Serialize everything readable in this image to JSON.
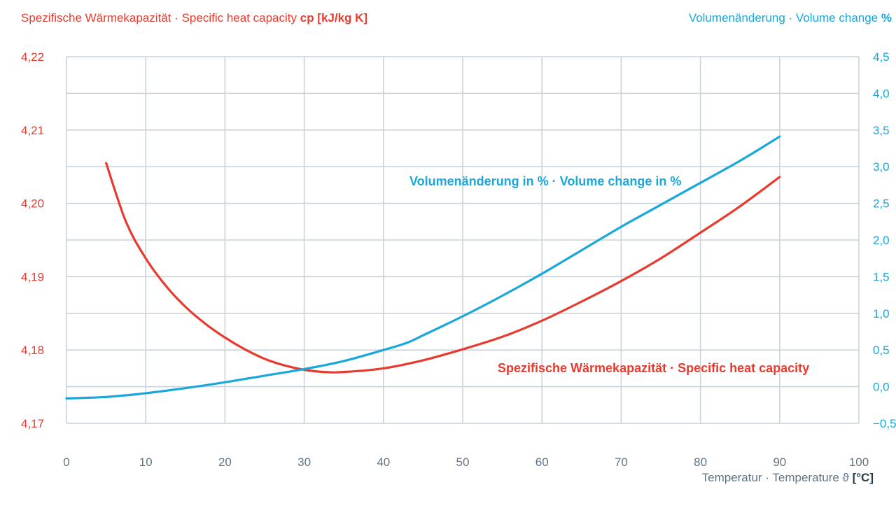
{
  "colors": {
    "heat": "#e63b2e",
    "volume": "#1aa7d9",
    "grid": "#c9d3da",
    "axis_text": "#5f7585"
  },
  "titles": {
    "left_text": "Spezifische Wärmekapazität · Specific heat capacity",
    "left_unit": "cp [kJ/kg K]",
    "right_text": "Volumenänderung · Volume change",
    "right_unit": "%",
    "x_text": "Temperatur · Temperature ϑ",
    "x_unit": "[°C]"
  },
  "chart_data": {
    "type": "line",
    "x": [
      0,
      10,
      20,
      30,
      40,
      50,
      60,
      70,
      80,
      90,
      100
    ],
    "xlabel": "Temperatur · Temperature ϑ [°C]",
    "xlim": [
      0,
      100
    ],
    "y_left": {
      "label": "Spezifische Wärmekapazität · Specific heat capacity cp [kJ/kg K]",
      "lim": [
        4.17,
        4.22
      ],
      "ticks": [
        "4,22",
        "4,21",
        "4,20",
        "4,19",
        "4,18",
        "4,17"
      ]
    },
    "y_right": {
      "label": "Volumenänderung · Volume change %",
      "lim": [
        -0.5,
        4.5
      ],
      "ticks": [
        "4,5",
        "4,0",
        "3,5",
        "3,0",
        "2,5",
        "2,0",
        "1,5",
        "1,0",
        "0,5",
        "0,0",
        "−0,5"
      ]
    },
    "x_ticks": [
      "0",
      "10",
      "20",
      "30",
      "40",
      "50",
      "60",
      "70",
      "80",
      "90",
      "100"
    ],
    "grid": true,
    "series": [
      {
        "name": "Spezifische Wärmekapazität · Specific heat capacity",
        "axis": "left",
        "x": [
          5,
          7.5,
          10,
          12.5,
          15,
          17.5,
          20,
          22.5,
          25,
          27.5,
          30,
          32.5,
          35,
          40,
          45,
          50,
          55,
          60,
          65,
          70,
          75,
          80,
          85,
          90
        ],
        "y": [
          4.2055,
          4.1975,
          4.1925,
          4.1888,
          4.1859,
          4.1836,
          4.1817,
          4.1801,
          4.1788,
          4.1779,
          4.1773,
          4.177,
          4.177,
          4.1775,
          4.1786,
          4.1801,
          4.1818,
          4.184,
          4.1866,
          4.1894,
          4.1925,
          4.196,
          4.1996,
          4.2036
        ]
      },
      {
        "name": "Volumenänderung in % · Volume change in %",
        "axis": "right",
        "x": [
          0,
          5,
          10,
          15,
          20,
          25,
          30,
          35,
          40,
          43,
          45,
          50,
          55,
          60,
          65,
          70,
          75,
          80,
          85,
          90
        ],
        "y": [
          -0.16,
          -0.14,
          -0.09,
          -0.02,
          0.06,
          0.15,
          0.24,
          0.35,
          0.5,
          0.6,
          0.7,
          0.96,
          1.24,
          1.54,
          1.86,
          2.18,
          2.48,
          2.78,
          3.08,
          3.41
        ]
      }
    ]
  }
}
